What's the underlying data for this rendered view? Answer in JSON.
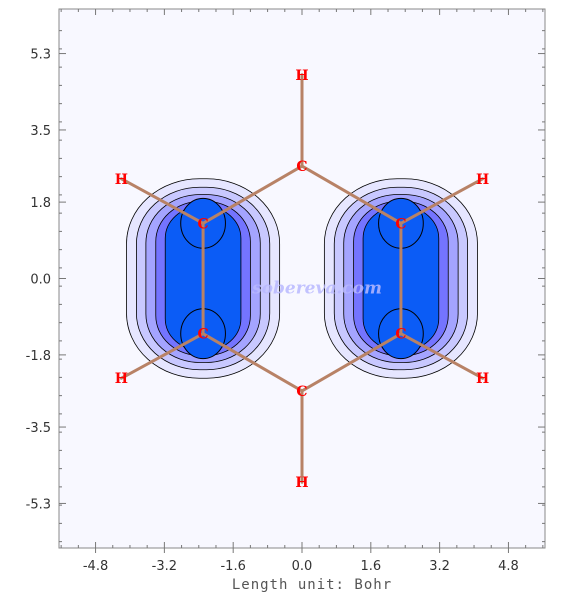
{
  "chart_data": {
    "type": "contour",
    "title": "",
    "xlabel": "Length unit: Bohr",
    "ylabel": "",
    "xlim": [
      -5.65,
      5.65
    ],
    "ylim": [
      -6.35,
      6.35
    ],
    "x_ticks": [
      "-4.8",
      "-3.2",
      "-1.6",
      "0.0",
      "1.6",
      "3.2",
      "4.8"
    ],
    "y_ticks": [
      "5.3",
      "3.5",
      "1.8",
      "0.0",
      "-1.8",
      "-3.5",
      "-5.3"
    ],
    "grid": false,
    "contour_levels": 5,
    "contour_fill_colors": [
      "#e6e6ff",
      "#c8c8ff",
      "#a4a4ff",
      "#7474ff",
      "#0b5cf6"
    ],
    "contour_line_color": "#000000",
    "bond_color": "#b88266",
    "background_color": "#f8f8ff",
    "lobes": [
      {
        "x_center": -2.3,
        "y_top": 1.3,
        "y_bottom": -1.3
      },
      {
        "x_center": 2.3,
        "y_top": 1.3,
        "y_bottom": -1.3
      }
    ],
    "atoms": [
      {
        "label": "C",
        "x": -2.3,
        "y": 1.3
      },
      {
        "label": "C",
        "x": -2.3,
        "y": -1.3
      },
      {
        "label": "C",
        "x": 2.3,
        "y": 1.3
      },
      {
        "label": "C",
        "x": 2.3,
        "y": -1.3
      },
      {
        "label": "C",
        "x": 0.0,
        "y": 2.65
      },
      {
        "label": "C",
        "x": 0.0,
        "y": -2.65
      },
      {
        "label": "H",
        "x": 0.0,
        "y": 4.8
      },
      {
        "label": "H",
        "x": 0.0,
        "y": -4.8
      },
      {
        "label": "H",
        "x": -4.2,
        "y": 2.35
      },
      {
        "label": "H",
        "x": 4.2,
        "y": 2.35
      },
      {
        "label": "H",
        "x": -4.2,
        "y": -2.35
      },
      {
        "label": "H",
        "x": 4.2,
        "y": -2.35
      }
    ],
    "bonds": [
      [
        4,
        0
      ],
      [
        0,
        1
      ],
      [
        1,
        5
      ],
      [
        5,
        3
      ],
      [
        3,
        2
      ],
      [
        2,
        4
      ],
      [
        4,
        6
      ],
      [
        5,
        7
      ],
      [
        0,
        8
      ],
      [
        2,
        9
      ],
      [
        1,
        10
      ],
      [
        3,
        11
      ]
    ],
    "watermark": "sobereva.com"
  }
}
